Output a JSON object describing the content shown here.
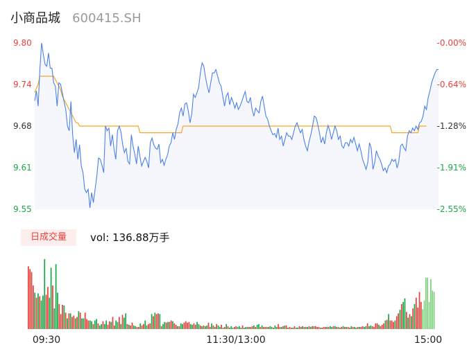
{
  "header": {
    "name": "小商品城",
    "code": "600415.SH"
  },
  "volume_panel": {
    "tag": "日成交量",
    "label": "vol: 136.88万手"
  },
  "colors": {
    "price_line": "#4a80e8",
    "avg_line": "#f5a623",
    "area_fill": "#f5f7fc",
    "up": "#e8413a",
    "down": "#1aa84a",
    "last_bar": "#7fd27f",
    "axis_text": "#333333"
  },
  "chart_data": [
    {
      "type": "line",
      "title": "",
      "y_left_ticks": [
        "9.80",
        "9.74",
        "9.68",
        "9.61",
        "9.55"
      ],
      "y_left_tick_colors": [
        "up",
        "up",
        "neutral",
        "down",
        "down"
      ],
      "y_right_ticks": [
        "-0.00%",
        "-0.64%",
        "-1.28%",
        "-1.91%",
        "-2.55%"
      ],
      "y_right_tick_colors": [
        "up",
        "up",
        "neutral",
        "down",
        "down"
      ],
      "ylim": [
        9.55,
        9.8
      ],
      "x_ticks": [
        "09:30",
        "11:30/13:00",
        "15:00"
      ],
      "grid": false,
      "series": [
        {
          "role": "price",
          "values": [
            9.713,
            9.728,
            9.705,
            9.76,
            9.8,
            9.783,
            9.768,
            9.765,
            9.785,
            9.762,
            9.762,
            9.74,
            9.735,
            9.705,
            9.74,
            9.738,
            9.725,
            9.712,
            9.7,
            9.675,
            9.668,
            9.712,
            9.662,
            9.635,
            9.655,
            9.625,
            9.647,
            9.615,
            9.605,
            9.58,
            9.575,
            9.58,
            9.552,
            9.575,
            9.56,
            9.58,
            9.6,
            9.627,
            9.625,
            9.616,
            9.605,
            9.675,
            9.668,
            9.672,
            9.645,
            9.662,
            9.64,
            9.625,
            9.668,
            9.675,
            9.666,
            9.647,
            9.635,
            9.642,
            9.622,
            9.618,
            9.662,
            9.645,
            9.633,
            9.618,
            9.645,
            9.629,
            9.615,
            9.622,
            9.628,
            9.622,
            9.612,
            9.65,
            9.657,
            9.647,
            9.642,
            9.64,
            9.648,
            9.62,
            9.625,
            9.616,
            9.625,
            9.632,
            9.645,
            9.65,
            9.665,
            9.655,
            9.67,
            9.678,
            9.695,
            9.702,
            9.69,
            9.708,
            9.71,
            9.698,
            9.68,
            9.693,
            9.723,
            9.718,
            9.725,
            9.733,
            9.755,
            9.77,
            9.765,
            9.748,
            9.735,
            9.725,
            9.74,
            9.755,
            9.755,
            9.76,
            9.75,
            9.74,
            9.735,
            9.72,
            9.705,
            9.72,
            9.725,
            9.707,
            9.718,
            9.711,
            9.702,
            9.71,
            9.7,
            9.705,
            9.712,
            9.72,
            9.727,
            9.712,
            9.71,
            9.718,
            9.7,
            9.69,
            9.702,
            9.698,
            9.695,
            9.712,
            9.72,
            9.705,
            9.69,
            9.685,
            9.675,
            9.668,
            9.662,
            9.664,
            9.658,
            9.672,
            9.655,
            9.66,
            9.645,
            9.655,
            9.665,
            9.66,
            9.66,
            9.655,
            9.665,
            9.675,
            9.68,
            9.672,
            9.665,
            9.67,
            9.655,
            9.645,
            9.638,
            9.652,
            9.662,
            9.675,
            9.69,
            9.688,
            9.678,
            9.665,
            9.65,
            9.658,
            9.648,
            9.665,
            9.676,
            9.668,
            9.655,
            9.665,
            9.675,
            9.668,
            9.655,
            9.66,
            9.645,
            9.642,
            9.65,
            9.65,
            9.645,
            9.655,
            9.65,
            9.658,
            9.648,
            9.638,
            9.648,
            9.638,
            9.625,
            9.618,
            9.61,
            9.62,
            9.65,
            9.642,
            9.61,
            9.62,
            9.638,
            9.63,
            9.625,
            9.618,
            9.608,
            9.612,
            9.605,
            9.615,
            9.618,
            9.625,
            9.622,
            9.625,
            9.612,
            9.622,
            9.645,
            9.648,
            9.642,
            9.638,
            9.66,
            9.668,
            9.665,
            9.672,
            9.668,
            9.675,
            9.67,
            9.68,
            9.682,
            9.69,
            9.705,
            9.7,
            9.718,
            9.728,
            9.74,
            9.748,
            9.755,
            9.76,
            9.76
          ]
        },
        {
          "role": "average",
          "values": [
            9.725,
            9.732,
            9.738,
            9.75,
            9.75,
            9.75,
            9.75,
            9.75,
            9.75,
            9.75,
            9.75,
            9.75,
            9.745,
            9.74,
            9.735,
            9.73,
            9.72,
            9.715,
            9.71,
            9.705,
            9.7,
            9.695,
            9.69,
            9.685,
            9.68,
            9.68,
            9.675,
            9.675,
            9.675,
            9.675,
            9.675,
            9.675,
            9.675,
            9.675,
            9.675,
            9.675,
            9.675,
            9.675,
            9.675,
            9.675,
            9.675,
            9.675,
            9.675,
            9.675,
            9.675,
            9.675,
            9.675,
            9.675,
            9.675,
            9.675,
            9.675,
            9.675,
            9.675,
            9.675,
            9.675,
            9.675,
            9.675,
            9.675,
            9.675,
            9.675,
            9.675,
            9.665,
            9.665,
            9.665,
            9.665,
            9.665,
            9.665,
            9.665,
            9.665,
            9.665,
            9.665,
            9.665,
            9.665,
            9.665,
            9.665,
            9.665,
            9.665,
            9.665,
            9.665,
            9.665,
            9.665,
            9.665,
            9.665,
            9.665,
            9.665,
            9.665,
            9.675,
            9.675,
            9.675,
            9.675,
            9.675,
            9.675,
            9.675,
            9.675,
            9.675,
            9.675,
            9.675,
            9.675,
            9.675,
            9.675,
            9.675,
            9.675,
            9.675,
            9.675,
            9.675,
            9.675,
            9.675,
            9.675,
            9.675,
            9.675,
            9.675,
            9.675,
            9.675,
            9.675,
            9.675,
            9.675,
            9.675,
            9.675,
            9.675,
            9.675,
            9.675,
            9.675,
            9.675,
            9.675,
            9.675,
            9.675,
            9.675,
            9.675,
            9.675,
            9.675,
            9.675,
            9.675,
            9.675,
            9.675,
            9.675,
            9.675,
            9.675,
            9.675,
            9.675,
            9.675,
            9.675,
            9.675,
            9.675,
            9.675,
            9.675,
            9.675,
            9.675,
            9.675,
            9.675,
            9.675,
            9.675,
            9.675,
            9.675,
            9.675,
            9.675,
            9.675,
            9.675,
            9.675,
            9.675,
            9.675,
            9.675,
            9.675,
            9.675,
            9.675,
            9.675,
            9.675,
            9.675,
            9.675,
            9.675,
            9.675,
            9.675,
            9.675,
            9.675,
            9.675,
            9.675,
            9.675,
            9.675,
            9.675,
            9.675,
            9.675,
            9.675,
            9.675,
            9.675,
            9.675,
            9.675,
            9.675,
            9.675,
            9.675,
            9.675,
            9.675,
            9.675,
            9.675,
            9.675,
            9.675,
            9.675,
            9.675,
            9.675,
            9.675,
            9.675,
            9.675,
            9.675,
            9.675,
            9.675,
            9.675,
            9.675,
            9.675,
            9.675,
            9.665,
            9.665,
            9.665,
            9.665,
            9.665,
            9.665,
            9.665,
            9.665,
            9.665,
            9.665,
            9.665,
            9.665,
            9.665,
            9.665,
            9.665,
            9.665,
            9.675,
            9.675,
            9.675,
            9.675,
            9.675
          ]
        }
      ]
    },
    {
      "type": "bar",
      "title": "",
      "x_ticks": [
        "09:30",
        "11:30/13:00",
        "15:00"
      ],
      "grid": false,
      "values": [
        88,
        84,
        80,
        61,
        51,
        44,
        50,
        46,
        40,
        47,
        98,
        48,
        59,
        44,
        86,
        61,
        29,
        91,
        51,
        35,
        21,
        34,
        33,
        23,
        15,
        22,
        22,
        17,
        19,
        15,
        17,
        25,
        23,
        15,
        15,
        23,
        14,
        12,
        12,
        11,
        7,
        12,
        14,
        8,
        5,
        7,
        11,
        7,
        12,
        6,
        11,
        10,
        17,
        5,
        12,
        10,
        17,
        7,
        20,
        16,
        22,
        7,
        6,
        5,
        9,
        5,
        4,
        3,
        3,
        8,
        5,
        7,
        12,
        5,
        7,
        8,
        21,
        18,
        23,
        21,
        22,
        21,
        4,
        7,
        10,
        9,
        10,
        10,
        12,
        11,
        8,
        6,
        4,
        4,
        8,
        7,
        9,
        11,
        9,
        10,
        7,
        6,
        8,
        6,
        10,
        7,
        5,
        4,
        5,
        4,
        5,
        9,
        3,
        8,
        5,
        3,
        7,
        5,
        3,
        6,
        2,
        3,
        7,
        4,
        2,
        4,
        2,
        3,
        4,
        3,
        4,
        2,
        5,
        2,
        3,
        3,
        3,
        3,
        4,
        5,
        3,
        6,
        7,
        3,
        5,
        3,
        3,
        3,
        3,
        4,
        3,
        2,
        5,
        3,
        7,
        3,
        3,
        4,
        5,
        5,
        2,
        3,
        2,
        2,
        4,
        2,
        2,
        4,
        3,
        4,
        3,
        3,
        3,
        4,
        3,
        4,
        4,
        4,
        3,
        3,
        2,
        2,
        3,
        3,
        3,
        3,
        4,
        3,
        4,
        4,
        3,
        3,
        2,
        3,
        4,
        3,
        3,
        3,
        2,
        4,
        3,
        3,
        2,
        3,
        3,
        3,
        4,
        3,
        4,
        8,
        4,
        5,
        4,
        3,
        8,
        8,
        6,
        4,
        6,
        8,
        12,
        13,
        21,
        12,
        12,
        10,
        12,
        18,
        22,
        27,
        35,
        38,
        43,
        24,
        16,
        21,
        18,
        29,
        35,
        44,
        30,
        52,
        38,
        28,
        40,
        72,
        72,
        38,
        70,
        54,
        52
      ],
      "directions": [
        "u",
        "u",
        "u",
        "u",
        "d",
        "u",
        "d",
        "u",
        "d",
        "d",
        "d",
        "u",
        "u",
        "d",
        "d",
        "u",
        "d",
        "d",
        "d",
        "u",
        "u",
        "u",
        "d",
        "u",
        "d",
        "u",
        "d",
        "u",
        "u",
        "d",
        "u",
        "d",
        "u",
        "d",
        "d",
        "u",
        "u",
        "u",
        "d",
        "d",
        "u",
        "d",
        "d",
        "u",
        "d",
        "d",
        "u",
        "d",
        "d",
        "u",
        "u",
        "d",
        "u",
        "u",
        "d",
        "d",
        "u",
        "d",
        "u",
        "d",
        "d",
        "u",
        "d",
        "u",
        "u",
        "d",
        "d",
        "u",
        "u",
        "d",
        "u",
        "u",
        "d",
        "d",
        "u",
        "u",
        "d",
        "u",
        "d",
        "u",
        "u",
        "d",
        "u",
        "d",
        "d",
        "u",
        "d",
        "u",
        "u",
        "d",
        "u",
        "u",
        "d",
        "u",
        "d",
        "d",
        "u",
        "u",
        "u",
        "u",
        "d",
        "d",
        "u",
        "u",
        "d",
        "d",
        "u",
        "d",
        "u",
        "d",
        "d",
        "u",
        "u",
        "d",
        "u",
        "d",
        "u",
        "d",
        "d",
        "u",
        "d",
        "u",
        "d",
        "u",
        "d",
        "d",
        "d",
        "u",
        "u",
        "d",
        "d",
        "d",
        "u",
        "d",
        "d",
        "u",
        "d",
        "u",
        "u",
        "d",
        "u",
        "d",
        "d",
        "u",
        "d",
        "u",
        "u",
        "d",
        "u",
        "d",
        "d",
        "u",
        "d",
        "d",
        "u",
        "u",
        "d",
        "u",
        "d",
        "u",
        "d",
        "u",
        "u",
        "d",
        "u",
        "d",
        "d",
        "u",
        "d",
        "u",
        "d",
        "u",
        "d",
        "u",
        "d",
        "u",
        "d",
        "u",
        "u",
        "u",
        "d",
        "u",
        "u",
        "u",
        "d",
        "u",
        "d",
        "d",
        "u",
        "d",
        "u",
        "d",
        "u",
        "u",
        "d",
        "u",
        "d",
        "u",
        "u",
        "d",
        "u",
        "d",
        "d",
        "u",
        "d",
        "u",
        "u",
        "d",
        "d",
        "u",
        "d",
        "d",
        "u",
        "u",
        "u",
        "u",
        "d",
        "u",
        "u",
        "u",
        "d",
        "u",
        "d",
        "u",
        "u",
        "u",
        "d",
        "u",
        "u",
        "d",
        "u",
        "d",
        "d",
        "u",
        "d",
        "u",
        "d",
        "u",
        "d",
        "u",
        "u",
        "u",
        "u",
        "n"
      ]
    }
  ]
}
